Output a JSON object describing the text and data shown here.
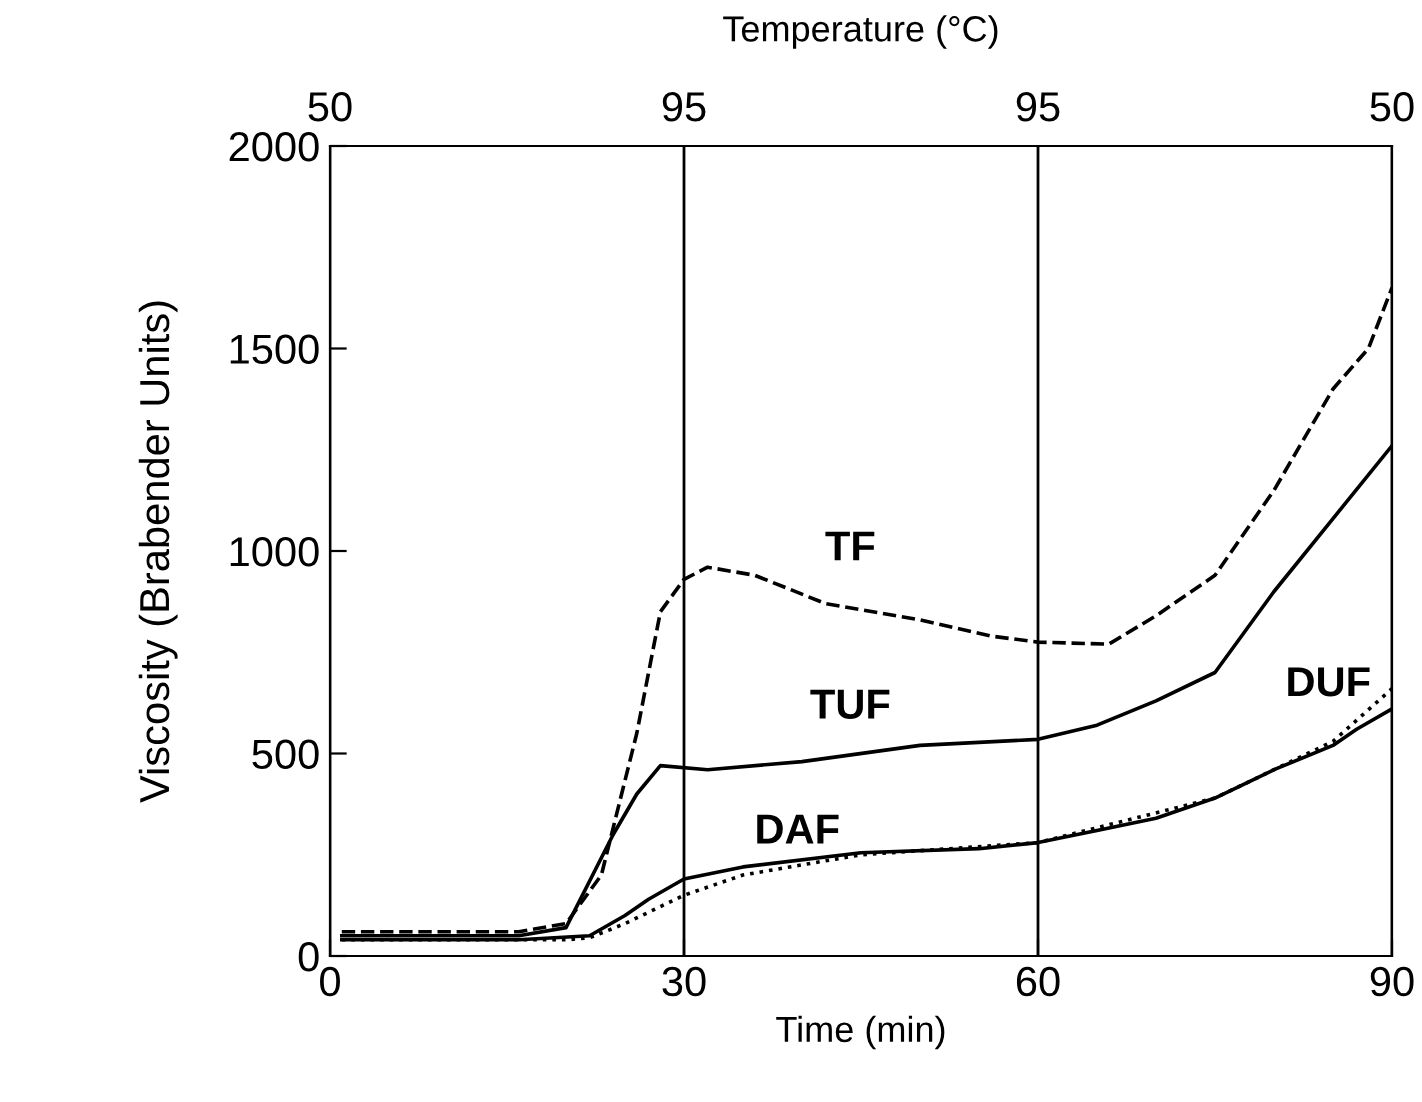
{
  "chart_data": {
    "type": "line",
    "xlabel": "Time (min)",
    "ylabel": "Viscosity (Brabender Units)",
    "x2label": "Temperature (°C)",
    "xlim": [
      0,
      90
    ],
    "xticks": [
      0,
      30,
      60,
      90
    ],
    "ylim": [
      0,
      2000
    ],
    "yticks": [
      0,
      500,
      1000,
      1500,
      2000
    ],
    "grid": "x",
    "legend": false,
    "series": [
      {
        "name": "TF",
        "color": "#000000",
        "line_style": "dashed",
        "x": [
          1,
          16,
          20,
          23,
          26,
          28,
          30,
          32,
          36,
          42,
          50,
          56,
          60,
          66,
          70,
          75,
          80,
          85,
          88,
          90
        ],
        "values": [
          60,
          60,
          80,
          200,
          550,
          850,
          930,
          960,
          940,
          870,
          830,
          790,
          775,
          770,
          840,
          940,
          1150,
          1400,
          1500,
          1650
        ]
      },
      {
        "name": "TUF",
        "color": "#000000",
        "line_style": "solid",
        "x": [
          1,
          16,
          20,
          24,
          26,
          28,
          32,
          40,
          50,
          60,
          65,
          70,
          75,
          80,
          85,
          90
        ],
        "values": [
          50,
          50,
          70,
          300,
          400,
          470,
          460,
          480,
          520,
          535,
          570,
          630,
          700,
          900,
          1080,
          1260
        ]
      },
      {
        "name": "DAF",
        "color": "#000000",
        "line_style": "solid",
        "x": [
          1,
          16,
          22,
          25,
          27,
          30,
          35,
          45,
          55,
          60,
          65,
          70,
          75,
          80,
          85,
          87,
          90
        ],
        "values": [
          40,
          40,
          50,
          100,
          140,
          190,
          220,
          255,
          265,
          280,
          310,
          340,
          390,
          460,
          520,
          560,
          610
        ]
      },
      {
        "name": "DUF",
        "color": "#000000",
        "line_style": "dotted",
        "x": [
          1,
          20,
          22,
          25,
          30,
          35,
          45,
          60,
          75,
          85,
          90
        ],
        "values": [
          40,
          40,
          45,
          80,
          150,
          200,
          250,
          280,
          390,
          530,
          660
        ]
      }
    ],
    "annotations": [
      "50",
      "95",
      "95",
      "50"
    ]
  }
}
